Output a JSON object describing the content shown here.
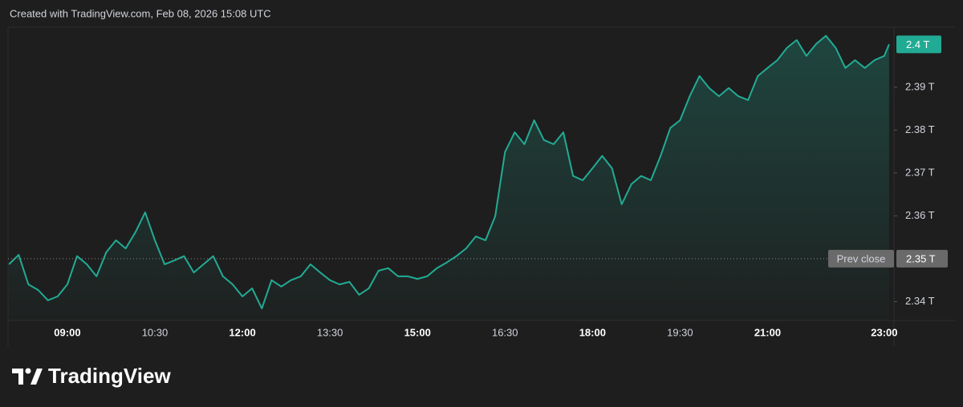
{
  "header": "Created with TradingView.com, Feb 08, 2026 15:08 UTC",
  "branding": "TradingView",
  "chart_data": {
    "type": "line",
    "x": [
      "08:00",
      "08:10",
      "08:20",
      "08:30",
      "08:40",
      "08:50",
      "09:00",
      "09:10",
      "09:20",
      "09:30",
      "09:40",
      "09:50",
      "10:00",
      "10:10",
      "10:20",
      "10:30",
      "10:40",
      "10:50",
      "11:00",
      "11:10",
      "11:20",
      "11:30",
      "11:40",
      "11:50",
      "12:00",
      "12:10",
      "12:20",
      "12:30",
      "12:40",
      "12:50",
      "13:00",
      "13:10",
      "13:20",
      "13:30",
      "13:40",
      "13:50",
      "14:00",
      "14:10",
      "14:20",
      "14:30",
      "14:40",
      "14:50",
      "15:00",
      "15:10",
      "15:20",
      "15:30",
      "15:40",
      "15:50",
      "16:00",
      "16:10",
      "16:20",
      "16:30",
      "16:40",
      "16:50",
      "17:00",
      "17:10",
      "17:20",
      "17:30",
      "17:40",
      "17:50",
      "18:00",
      "18:10",
      "18:20",
      "18:30",
      "18:40",
      "18:50",
      "19:00",
      "19:10",
      "19:20",
      "19:30",
      "19:40",
      "19:50",
      "20:00",
      "20:10",
      "20:20",
      "20:30",
      "20:40",
      "20:50",
      "21:00",
      "21:10",
      "21:20",
      "21:30",
      "21:40",
      "21:50",
      "22:00",
      "22:10",
      "22:20",
      "22:30",
      "22:40",
      "22:50",
      "23:00",
      "23:05"
    ],
    "values": [
      2.3487,
      2.3509,
      2.344,
      2.3427,
      2.3403,
      2.3412,
      2.344,
      2.3506,
      2.3487,
      2.3459,
      2.3515,
      2.3543,
      2.3524,
      2.3562,
      2.3608,
      2.3543,
      2.3487,
      2.3496,
      2.3506,
      2.3468,
      2.3487,
      2.3506,
      2.3459,
      2.344,
      2.3412,
      2.3431,
      2.3384,
      2.345,
      2.3435,
      2.345,
      2.3459,
      2.3487,
      2.3468,
      2.345,
      2.344,
      2.3446,
      2.3416,
      2.3431,
      2.3472,
      2.3478,
      2.3459,
      2.3459,
      2.3453,
      2.3459,
      2.3478,
      2.3491,
      2.3506,
      2.3524,
      2.3552,
      2.3543,
      2.3599,
      2.3749,
      2.3795,
      2.3767,
      2.3823,
      2.3777,
      2.3767,
      2.3795,
      2.3693,
      2.3683,
      2.3711,
      2.374,
      2.3711,
      2.3627,
      2.3674,
      2.3693,
      2.3683,
      2.374,
      2.3805,
      2.3823,
      2.3879,
      2.3926,
      2.3898,
      2.3879,
      2.3898,
      2.3879,
      2.387,
      2.3926,
      2.3945,
      2.3963,
      2.3992,
      2.401,
      2.3973,
      2.4001,
      2.402,
      2.3992,
      2.3945,
      2.3963,
      2.3945,
      2.3963,
      2.3973,
      2.4
    ],
    "color": "#22ab94",
    "xlim": [
      "07:59",
      "23:10"
    ],
    "xticks": [
      "09:00",
      "10:30",
      "12:00",
      "13:30",
      "15:00",
      "16:30",
      "18:00",
      "19:30",
      "21:00",
      "23:00"
    ],
    "ylim": [
      2.3356,
      2.4038
    ],
    "yticks": [
      {
        "value": 2.34,
        "label": "2.34 T"
      },
      {
        "value": 2.36,
        "label": "2.36 T"
      },
      {
        "value": 2.37,
        "label": "2.37 T"
      },
      {
        "value": 2.38,
        "label": "2.38 T"
      },
      {
        "value": 2.39,
        "label": "2.39 T"
      }
    ],
    "prev_close": {
      "value": 2.35,
      "label": "2.35 T",
      "name": "Prev close"
    },
    "last_price": {
      "value": 2.4,
      "label": "2.4 T"
    }
  }
}
